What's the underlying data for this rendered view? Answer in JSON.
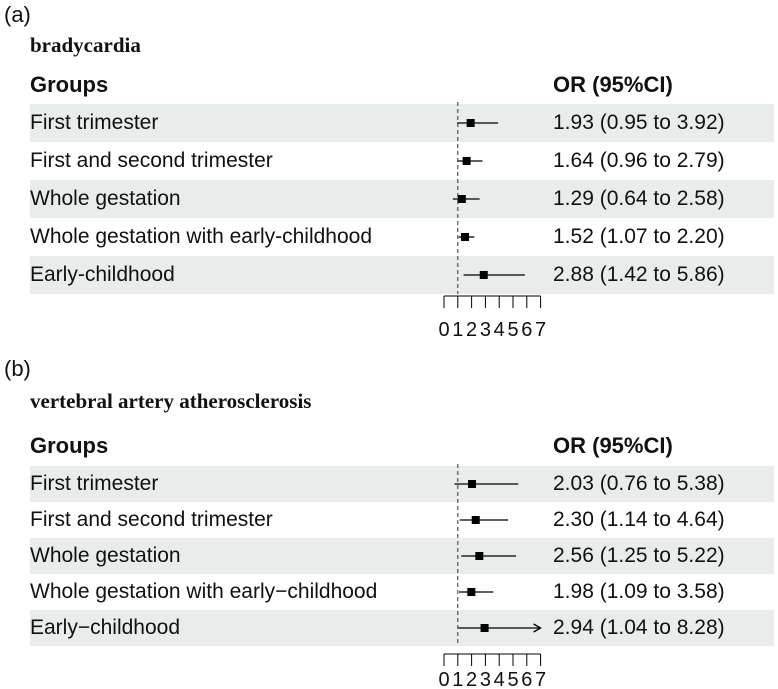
{
  "chart_data": [
    {
      "type": "forest",
      "panel_label": "(a)",
      "title": "bradycardia",
      "header_group": "Groups",
      "header_or": "OR (95%CI)",
      "x_ticks": [
        "0",
        "1",
        "2",
        "3",
        "4",
        "5",
        "6",
        "7"
      ],
      "xlim": [
        0,
        7
      ],
      "reference_line": 1,
      "rows": [
        {
          "group": "First trimester",
          "or_text": "1.93 (0.95 to 3.92)",
          "or": 1.93,
          "lo": 0.95,
          "hi": 3.92,
          "arrow": false
        },
        {
          "group": "First and second trimester",
          "or_text": "1.64 (0.96 to 2.79)",
          "or": 1.64,
          "lo": 0.96,
          "hi": 2.79,
          "arrow": false
        },
        {
          "group": "Whole gestation",
          "or_text": "1.29 (0.64 to 2.58)",
          "or": 1.29,
          "lo": 0.64,
          "hi": 2.58,
          "arrow": false
        },
        {
          "group": "Whole gestation with early-childhood",
          "or_text": "1.52 (1.07 to 2.20)",
          "or": 1.52,
          "lo": 1.07,
          "hi": 2.2,
          "arrow": false
        },
        {
          "group": "Early-childhood",
          "or_text": "2.88 (1.42 to 5.86)",
          "or": 2.88,
          "lo": 1.42,
          "hi": 5.86,
          "arrow": false
        }
      ]
    },
    {
      "type": "forest",
      "panel_label": "(b)",
      "title": "vertebral artery atherosclerosis",
      "header_group": "Groups",
      "header_or": "OR (95%CI)",
      "x_ticks": [
        "0",
        "1",
        "2",
        "3",
        "4",
        "5",
        "6",
        "7"
      ],
      "xlim": [
        0,
        7
      ],
      "reference_line": 1,
      "rows": [
        {
          "group": "First trimester",
          "or_text": "2.03 (0.76 to 5.38)",
          "or": 2.03,
          "lo": 0.76,
          "hi": 5.38,
          "arrow": false
        },
        {
          "group": "First and second trimester",
          "or_text": "2.30 (1.14 to 4.64)",
          "or": 2.3,
          "lo": 1.14,
          "hi": 4.64,
          "arrow": false
        },
        {
          "group": "Whole gestation",
          "or_text": "2.56 (1.25 to 5.22)",
          "or": 2.56,
          "lo": 1.25,
          "hi": 5.22,
          "arrow": false
        },
        {
          "group": "Whole gestation with early−childhood",
          "or_text": "1.98 (1.09 to 3.58)",
          "or": 1.98,
          "lo": 1.09,
          "hi": 3.58,
          "arrow": false
        },
        {
          "group": "Early−childhood",
          "or_text": "2.94 (1.04 to 8.28)",
          "or": 2.94,
          "lo": 1.04,
          "hi": 8.28,
          "arrow": true
        }
      ]
    }
  ]
}
